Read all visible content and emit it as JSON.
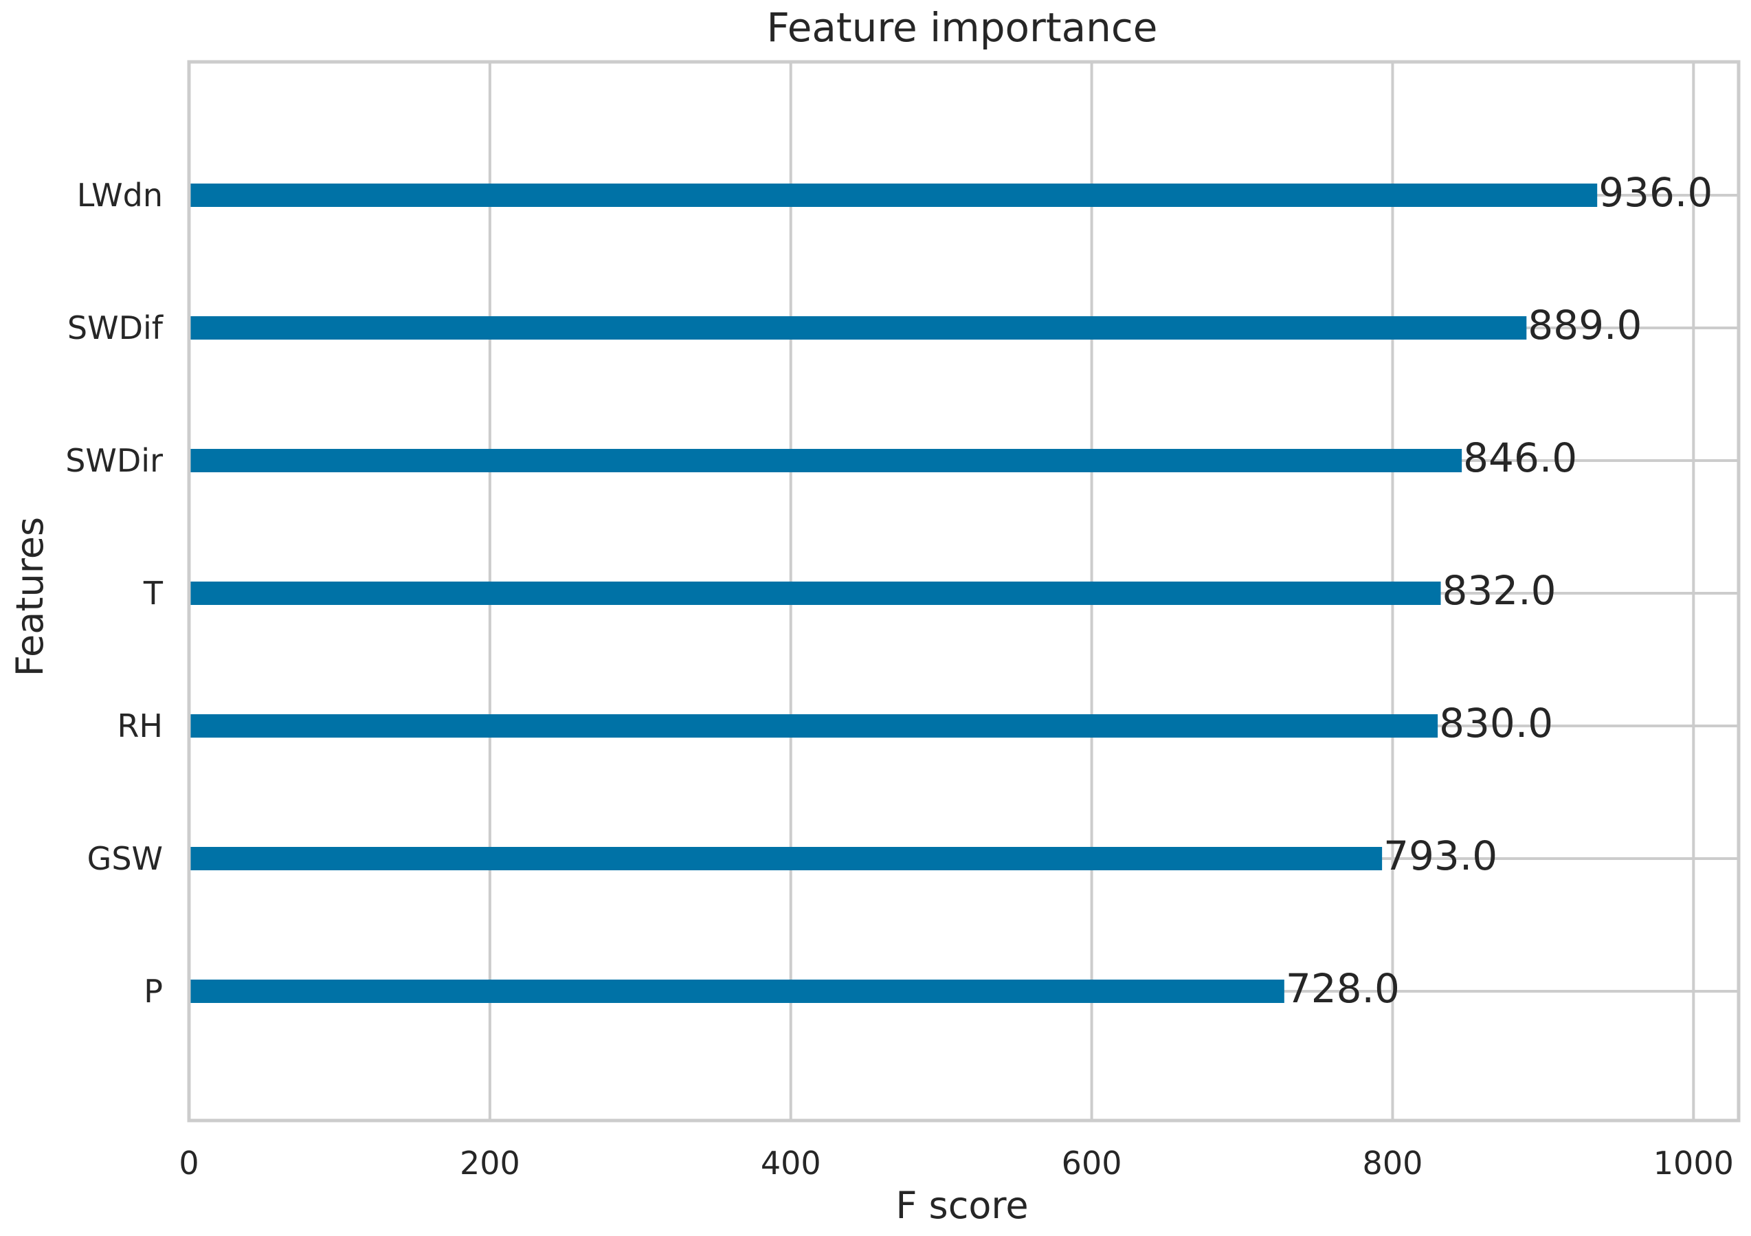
{
  "chart_data": {
    "type": "bar",
    "orientation": "horizontal",
    "title": "Feature importance",
    "xlabel": "F score",
    "ylabel": "Features",
    "categories": [
      "LWdn",
      "SWDif",
      "SWDir",
      "T",
      "RH",
      "GSW",
      "P"
    ],
    "values": [
      936.0,
      889.0,
      846.0,
      832.0,
      830.0,
      793.0,
      728.0
    ],
    "value_labels": [
      "936.0",
      "889.0",
      "846.0",
      "832.0",
      "830.0",
      "793.0",
      "728.0"
    ],
    "xlim": [
      0,
      1030
    ],
    "xticks": [
      0,
      200,
      400,
      600,
      800,
      1000
    ],
    "xtick_labels": [
      "0",
      "200",
      "400",
      "600",
      "800",
      "1000"
    ],
    "grid": true,
    "bar_color": "#0072a6"
  }
}
